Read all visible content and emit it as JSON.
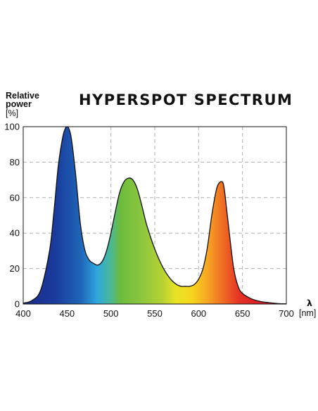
{
  "chart_data": {
    "type": "area",
    "title": "HYPERSPOT SPECTRUM",
    "ylabel_line1": "Relative",
    "ylabel_line2": "power",
    "yunit": "[%]",
    "xlabel": "λ",
    "xunit": "[nm]",
    "xlim": [
      400,
      700
    ],
    "ylim": [
      0,
      100
    ],
    "x_ticks": [
      "400",
      "450",
      "500",
      "550",
      "600",
      "650",
      "700"
    ],
    "y_ticks": [
      "0",
      "20",
      "40",
      "60",
      "80",
      "100"
    ],
    "grid": true,
    "fill": "visible-spectrum gradient",
    "series": [
      {
        "x": [
          400,
          410,
          420,
          430,
          435,
          440,
          445,
          448,
          450,
          452,
          455,
          460,
          465,
          470,
          475,
          480,
          485,
          490,
          495,
          500,
          505,
          510,
          515,
          520,
          525,
          530,
          535,
          540,
          545,
          550,
          555,
          560,
          565,
          570,
          575,
          580,
          585,
          590,
          595,
          600,
          605,
          610,
          615,
          620,
          623,
          626,
          628,
          630,
          635,
          640,
          645,
          650,
          660,
          670,
          680,
          690,
          700
        ],
        "values": [
          0.5,
          2,
          8,
          30,
          52,
          78,
          94,
          99,
          100,
          99,
          93,
          72,
          46,
          31,
          25,
          23,
          22,
          24,
          30,
          40,
          52,
          63,
          69,
          71,
          70,
          65,
          56,
          46,
          38,
          31,
          25,
          20,
          16,
          13,
          11,
          10,
          10,
          10,
          11,
          14,
          20,
          32,
          50,
          64,
          68,
          69,
          68,
          62,
          40,
          20,
          10,
          6,
          3,
          1.5,
          0.8,
          0.3,
          0.1
        ]
      }
    ]
  },
  "colors": {
    "gridline": "#b0b0b0",
    "outline": "#111111",
    "spectrum": [
      "#1c2e8c",
      "#1a3a9c",
      "#1e66b8",
      "#2fa6df",
      "#47b89a",
      "#6dbb3c",
      "#8cc63f",
      "#b6d233",
      "#e8e324",
      "#f6d61c",
      "#f5a623",
      "#ef6b23",
      "#e63325",
      "#d81e27",
      "#c4161c"
    ]
  }
}
